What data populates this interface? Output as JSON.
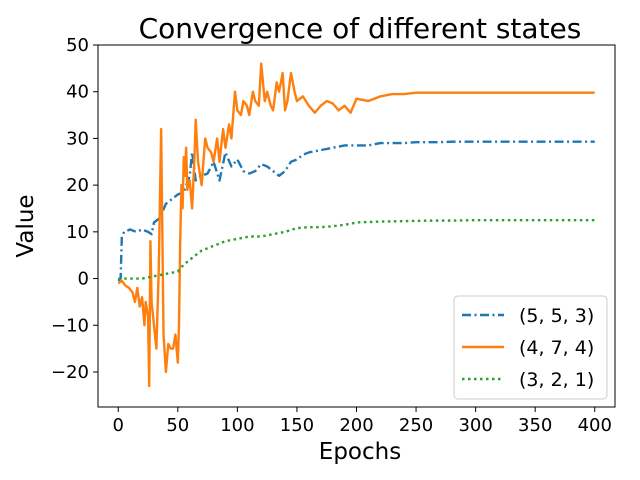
{
  "chart_data": {
    "type": "line",
    "title": "Convergence of different states",
    "xlabel": "Epochs",
    "ylabel": "Value",
    "xlim": [
      -17,
      417
    ],
    "ylim": [
      -27.5,
      50
    ],
    "xticks": [
      0,
      50,
      100,
      150,
      200,
      250,
      300,
      350,
      400
    ],
    "yticks": [
      -20,
      -10,
      0,
      10,
      20,
      30,
      40,
      50
    ],
    "xtick_labels": [
      "0",
      "50",
      "100",
      "150",
      "200",
      "250",
      "300",
      "350",
      "400"
    ],
    "ytick_labels": [
      "−20",
      "−10",
      "0",
      "10",
      "20",
      "30",
      "40",
      "50"
    ],
    "grid": false,
    "legend_position": "lower-right",
    "series": [
      {
        "name": "(5, 5, 3)",
        "color": "#1f77b4",
        "style": "dashdot",
        "x": [
          0,
          2,
          3,
          5,
          10,
          15,
          20,
          25,
          28,
          30,
          35,
          40,
          45,
          50,
          55,
          60,
          62,
          65,
          70,
          75,
          80,
          85,
          90,
          95,
          100,
          105,
          110,
          115,
          120,
          125,
          130,
          135,
          140,
          145,
          150,
          155,
          160,
          170,
          180,
          190,
          200,
          210,
          220,
          230,
          240,
          250,
          260,
          270,
          280,
          290,
          300,
          320,
          340,
          360,
          380,
          400
        ],
        "y": [
          -0.5,
          0,
          9,
          10,
          10.5,
          10,
          10.5,
          10,
          9.5,
          12,
          13,
          16,
          17,
          18,
          18.5,
          22,
          27,
          21,
          22,
          22.5,
          25,
          21,
          27,
          24,
          25.5,
          23,
          22.5,
          23,
          24.5,
          24,
          23,
          22,
          23,
          25,
          25.5,
          26.5,
          27,
          27.5,
          28,
          28.5,
          28.5,
          28.5,
          29,
          29,
          29,
          29.2,
          29.2,
          29.2,
          29.3,
          29.3,
          29.3,
          29.3,
          29.3,
          29.3,
          29.3,
          29.3
        ]
      },
      {
        "name": "(4, 7, 4)",
        "color": "#ff7f0e",
        "style": "solid",
        "x": [
          0,
          3,
          6,
          9,
          12,
          14,
          16,
          18,
          20,
          22,
          23,
          25,
          26,
          27,
          28,
          30,
          32,
          34,
          36,
          38,
          40,
          42,
          44,
          46,
          48,
          50,
          51,
          52,
          53,
          54,
          55,
          56,
          57,
          58,
          60,
          62,
          64,
          65,
          67,
          70,
          73,
          75,
          78,
          80,
          83,
          85,
          88,
          90,
          93,
          95,
          98,
          100,
          103,
          105,
          108,
          110,
          113,
          115,
          118,
          120,
          123,
          125,
          128,
          130,
          133,
          135,
          138,
          140,
          142,
          145,
          148,
          150,
          155,
          160,
          165,
          170,
          175,
          180,
          185,
          190,
          195,
          200,
          210,
          220,
          230,
          240,
          250,
          260,
          270,
          280,
          290,
          300,
          320,
          340,
          360,
          380,
          400
        ],
        "y": [
          -1,
          -0.5,
          -1.5,
          -2,
          -3,
          -5,
          -2,
          -6,
          -4,
          -10,
          -5,
          -8,
          -23,
          8,
          -5,
          -10,
          -15,
          2,
          32,
          -12,
          -20,
          -14,
          -15,
          -15,
          -12,
          -18,
          -10,
          8,
          20,
          15,
          26,
          22,
          28,
          19,
          21,
          15,
          26,
          34,
          25,
          20,
          30,
          28,
          27,
          25,
          30,
          25,
          32,
          28,
          33,
          30,
          40,
          36,
          35,
          38,
          37,
          35,
          40,
          38,
          37,
          46,
          38,
          40,
          37,
          36,
          42,
          40,
          44,
          36,
          38,
          44,
          40,
          38,
          39,
          37,
          35.5,
          37,
          38,
          37.5,
          36,
          37,
          35.5,
          38.5,
          38,
          39,
          39.5,
          39.5,
          39.8,
          39.8,
          39.8,
          39.8,
          39.8,
          39.8,
          39.8,
          39.8,
          39.8,
          39.8,
          39.8
        ]
      },
      {
        "name": "(3, 2, 1)",
        "color": "#2ca02c",
        "style": "dotted",
        "x": [
          0,
          10,
          20,
          30,
          40,
          50,
          55,
          60,
          65,
          70,
          80,
          90,
          100,
          110,
          120,
          130,
          140,
          150,
          160,
          170,
          180,
          190,
          200,
          220,
          240,
          260,
          280,
          300,
          320,
          340,
          360,
          380,
          400
        ],
        "y": [
          0,
          0,
          0,
          0.5,
          1,
          1.5,
          3,
          4,
          5,
          6,
          7,
          8,
          8.5,
          9,
          9,
          9.5,
          10,
          10.8,
          11,
          11,
          11.2,
          11.5,
          12,
          12.2,
          12.3,
          12.4,
          12.4,
          12.5,
          12.5,
          12.5,
          12.5,
          12.5,
          12.5
        ]
      }
    ]
  }
}
